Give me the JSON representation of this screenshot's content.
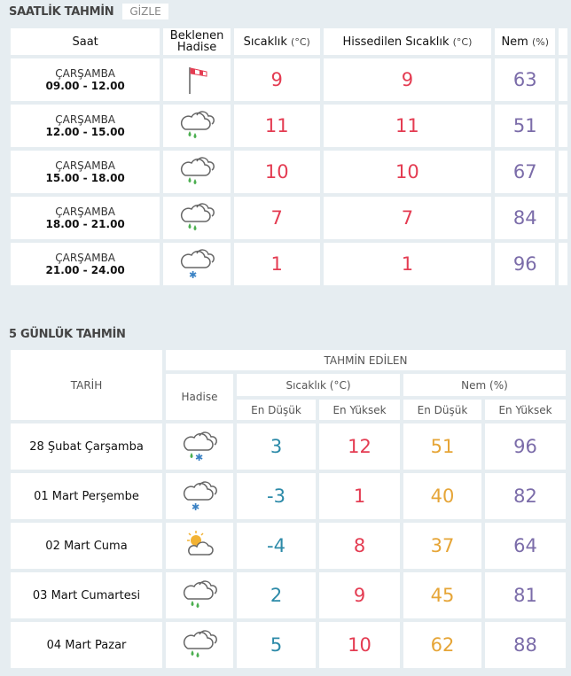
{
  "hourly": {
    "title": "SAATLİK TAHMİN",
    "hide_label": "GİZLE",
    "headers": {
      "time": "Saat",
      "event": "Beklenen Hadise",
      "temp": "Sıcaklık",
      "temp_unit": "(°C)",
      "feels": "Hissedilen Sıcaklık",
      "feels_unit": "(°C)",
      "hum": "Nem",
      "hum_unit": "(%)"
    },
    "rows": [
      {
        "day": "ÇARŞAMBA",
        "hours": "09.00 - 12.00",
        "icon": "windsock-icon",
        "temp": "9",
        "feels": "9",
        "hum": "63"
      },
      {
        "day": "ÇARŞAMBA",
        "hours": "12.00 - 15.00",
        "icon": "cloud-rain-icon",
        "temp": "11",
        "feels": "11",
        "hum": "51"
      },
      {
        "day": "ÇARŞAMBA",
        "hours": "15.00 - 18.00",
        "icon": "cloud-rain-icon",
        "temp": "10",
        "feels": "10",
        "hum": "67"
      },
      {
        "day": "ÇARŞAMBA",
        "hours": "18.00 - 21.00",
        "icon": "cloud-rain-icon",
        "temp": "7",
        "feels": "7",
        "hum": "84"
      },
      {
        "day": "ÇARŞAMBA",
        "hours": "21.00 - 24.00",
        "icon": "cloud-snow-icon",
        "temp": "1",
        "feels": "1",
        "hum": "96"
      }
    ]
  },
  "daily": {
    "title": "5 GÜNLÜK TAHMİN",
    "headers": {
      "date": "TARİH",
      "group": "TAHMİN EDİLEN",
      "event": "Hadise",
      "temp": "Sıcaklık (°C)",
      "hum": "Nem (%)",
      "min": "En Düşük",
      "max": "En Yüksek"
    },
    "rows": [
      {
        "date": "28 Şubat Çarşamba",
        "icon": "cloud-sleet-icon",
        "tmin": "3",
        "tmax": "12",
        "hmin": "51",
        "hmax": "96"
      },
      {
        "date": "01 Mart Perşembe",
        "icon": "cloud-snow-icon",
        "tmin": "-3",
        "tmax": "1",
        "hmin": "40",
        "hmax": "82"
      },
      {
        "date": "02 Mart Cuma",
        "icon": "partly-sunny-icon",
        "tmin": "-4",
        "tmax": "8",
        "hmin": "37",
        "hmax": "64"
      },
      {
        "date": "03 Mart Cumartesi",
        "icon": "cloud-rain-icon",
        "tmin": "2",
        "tmax": "9",
        "hmin": "45",
        "hmax": "81"
      },
      {
        "date": "04 Mart Pazar",
        "icon": "cloud-rain-icon",
        "tmin": "5",
        "tmax": "10",
        "hmin": "62",
        "hmax": "88"
      }
    ]
  },
  "colors": {
    "red": "#e43c52",
    "purple": "#7b6ca9",
    "teal": "#2c8aa8",
    "orange": "#e6a537"
  }
}
